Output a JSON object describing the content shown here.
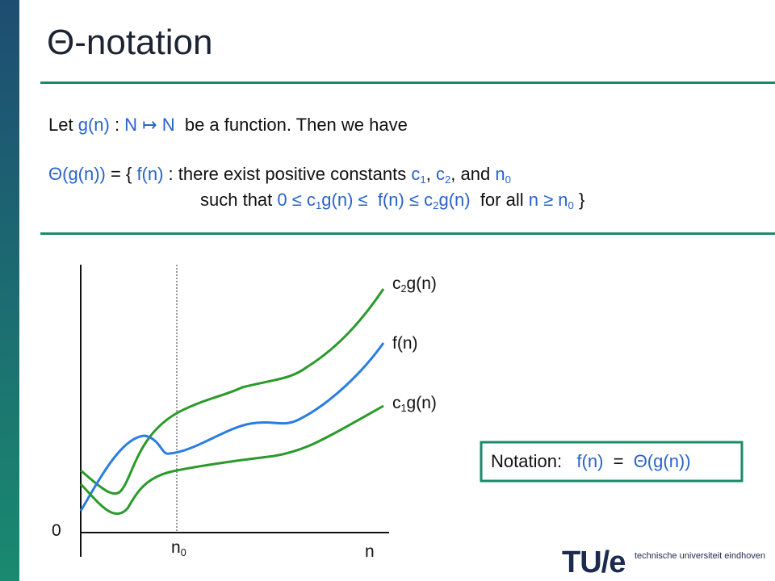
{
  "title": "Θ-notation",
  "definition": {
    "line1": [
      {
        "text": "Let ",
        "color": "#111111"
      },
      {
        "text": "g(n)",
        "color": "#2a63c9"
      },
      {
        "text": " : ",
        "color": "#111111"
      },
      {
        "text": "N ↦ N",
        "color": "#2a63c9"
      },
      {
        "text": "  be a function. Then we have",
        "color": "#111111"
      }
    ],
    "line2": [
      {
        "text": "Θ(g(n))",
        "color": "#2a63c9"
      },
      {
        "text": " = { ",
        "color": "#111111"
      },
      {
        "text": "f(n)",
        "color": "#2a63c9"
      },
      {
        "text": " : there exist positive constants ",
        "color": "#111111"
      },
      {
        "text": "c",
        "color": "#2a63c9"
      },
      {
        "text": "1",
        "color": "#2a63c9",
        "sub": true
      },
      {
        "text": ", ",
        "color": "#111111"
      },
      {
        "text": "c",
        "color": "#2a63c9"
      },
      {
        "text": "2",
        "color": "#2a63c9",
        "sub": true
      },
      {
        "text": ", and ",
        "color": "#111111"
      },
      {
        "text": "n",
        "color": "#2a63c9"
      },
      {
        "text": "0",
        "color": "#2a63c9",
        "sub": true
      }
    ],
    "line3": [
      {
        "text": "such that ",
        "color": "#111111"
      },
      {
        "text": "0 ≤ c",
        "color": "#2a63c9"
      },
      {
        "text": "1",
        "color": "#2a63c9",
        "sub": true
      },
      {
        "text": "g(n) ≤  f(n) ≤ c",
        "color": "#2a63c9"
      },
      {
        "text": "2",
        "color": "#2a63c9",
        "sub": true
      },
      {
        "text": "g(n)",
        "color": "#2a63c9"
      },
      {
        "text": "  for all ",
        "color": "#111111"
      },
      {
        "text": "n ≥ n",
        "color": "#2a63c9"
      },
      {
        "text": "0",
        "color": "#2a63c9",
        "sub": true
      },
      {
        "text": " }",
        "color": "#111111"
      }
    ]
  },
  "graph": {
    "upper_label": [
      {
        "text": "c"
      },
      {
        "text": "2",
        "sub": true
      },
      {
        "text": "g(n)"
      }
    ],
    "middle_label": [
      {
        "text": "f(n)"
      }
    ],
    "lower_label": [
      {
        "text": "c"
      },
      {
        "text": "1",
        "sub": true
      },
      {
        "text": "g(n)"
      }
    ],
    "origin_label": [
      {
        "text": "0"
      }
    ],
    "n0_label": [
      {
        "text": "n"
      },
      {
        "text": "0",
        "sub": true
      }
    ],
    "x_label": [
      {
        "text": "n"
      }
    ]
  },
  "notation": [
    {
      "text": "Notation:   ",
      "color": "#111111"
    },
    {
      "text": "f(n)",
      "color": "#2a63c9"
    },
    {
      "text": "  =  ",
      "color": "#111111"
    },
    {
      "text": "Θ(g(n))",
      "color": "#2a63c9"
    }
  ],
  "logo": {
    "mark": "TU/e",
    "text": "technische universiteit eindhoven"
  }
}
